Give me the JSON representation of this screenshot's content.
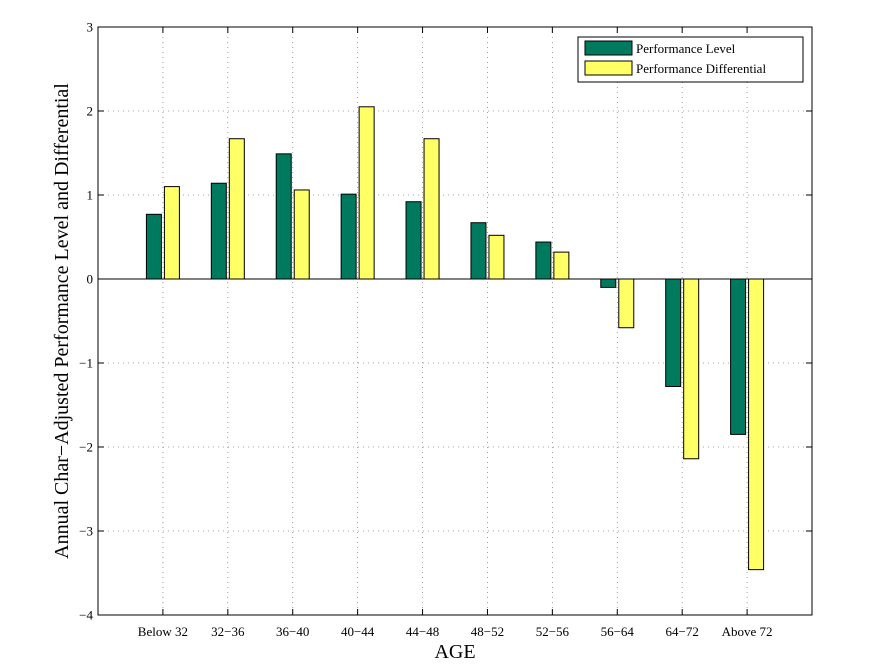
{
  "chart_data": {
    "type": "bar",
    "title": "",
    "xlabel": "AGE",
    "ylabel": "Annual Char−Adjusted Performance Level and Differential",
    "categories": [
      "Below 32",
      "32−36",
      "36−40",
      "40−44",
      "44−48",
      "48−52",
      "52−56",
      "56−64",
      "64−72",
      "Above 72"
    ],
    "series": [
      {
        "name": "Performance Level",
        "color": "#007a5e",
        "values": [
          0.77,
          1.14,
          1.49,
          1.01,
          0.92,
          0.67,
          0.44,
          -0.1,
          -1.28,
          -1.85
        ]
      },
      {
        "name": "Performance Differential",
        "color": "#ffff66",
        "values": [
          1.1,
          1.67,
          1.06,
          2.05,
          1.67,
          0.52,
          0.32,
          -0.58,
          -2.14,
          -3.46
        ]
      }
    ],
    "ylim": [
      -4,
      3
    ],
    "yticks": [
      "−4",
      "−3",
      "−2",
      "−1",
      "0",
      "1",
      "2",
      "3"
    ],
    "grid": true,
    "legend_position": "top-right"
  }
}
